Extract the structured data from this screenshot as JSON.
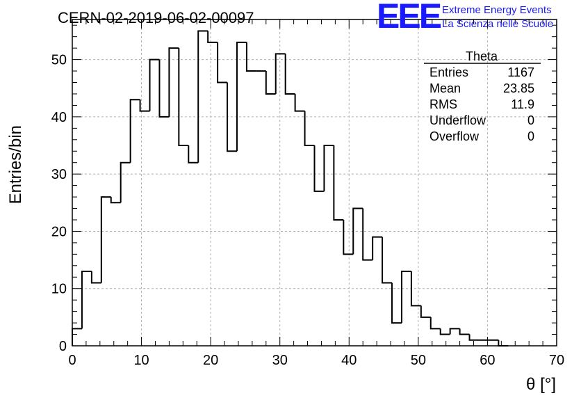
{
  "chart_data": {
    "type": "bar",
    "style": "step-histogram",
    "title": "CERN-02-2019-06-02-00097",
    "xlabel": "θ [°]",
    "ylabel": "Entries/bin",
    "xlim": [
      0,
      70
    ],
    "ylim": [
      0,
      57
    ],
    "bin_width": 1.4,
    "x_ticks": [
      "0",
      "10",
      "20",
      "30",
      "40",
      "50",
      "60",
      "70"
    ],
    "y_ticks": [
      "0",
      "10",
      "20",
      "30",
      "40",
      "50"
    ],
    "grid": true,
    "values": [
      3,
      13,
      11,
      26,
      25,
      32,
      43,
      41,
      50,
      40,
      52,
      35,
      32,
      55,
      53,
      46,
      34,
      53,
      48,
      48,
      44,
      51,
      44,
      41,
      35,
      27,
      35,
      22,
      16,
      24,
      15,
      19,
      11,
      4,
      13,
      7,
      5,
      3,
      2,
      3,
      2,
      1,
      1,
      1,
      0
    ],
    "line_color": "#000000"
  },
  "stats_box": {
    "title": "Theta",
    "rows": [
      {
        "label": "Entries",
        "value": "1167"
      },
      {
        "label": "Mean",
        "value": "23.85"
      },
      {
        "label": "RMS",
        "value": "11.9"
      },
      {
        "label": "Underflow",
        "value": "0"
      },
      {
        "label": "Overflow",
        "value": "0"
      }
    ]
  },
  "logo": {
    "mark": "EEE",
    "line1": "Extreme Energy Events",
    "line2": "La Scienza nelle Scuole",
    "color": "#1a1aff"
  }
}
